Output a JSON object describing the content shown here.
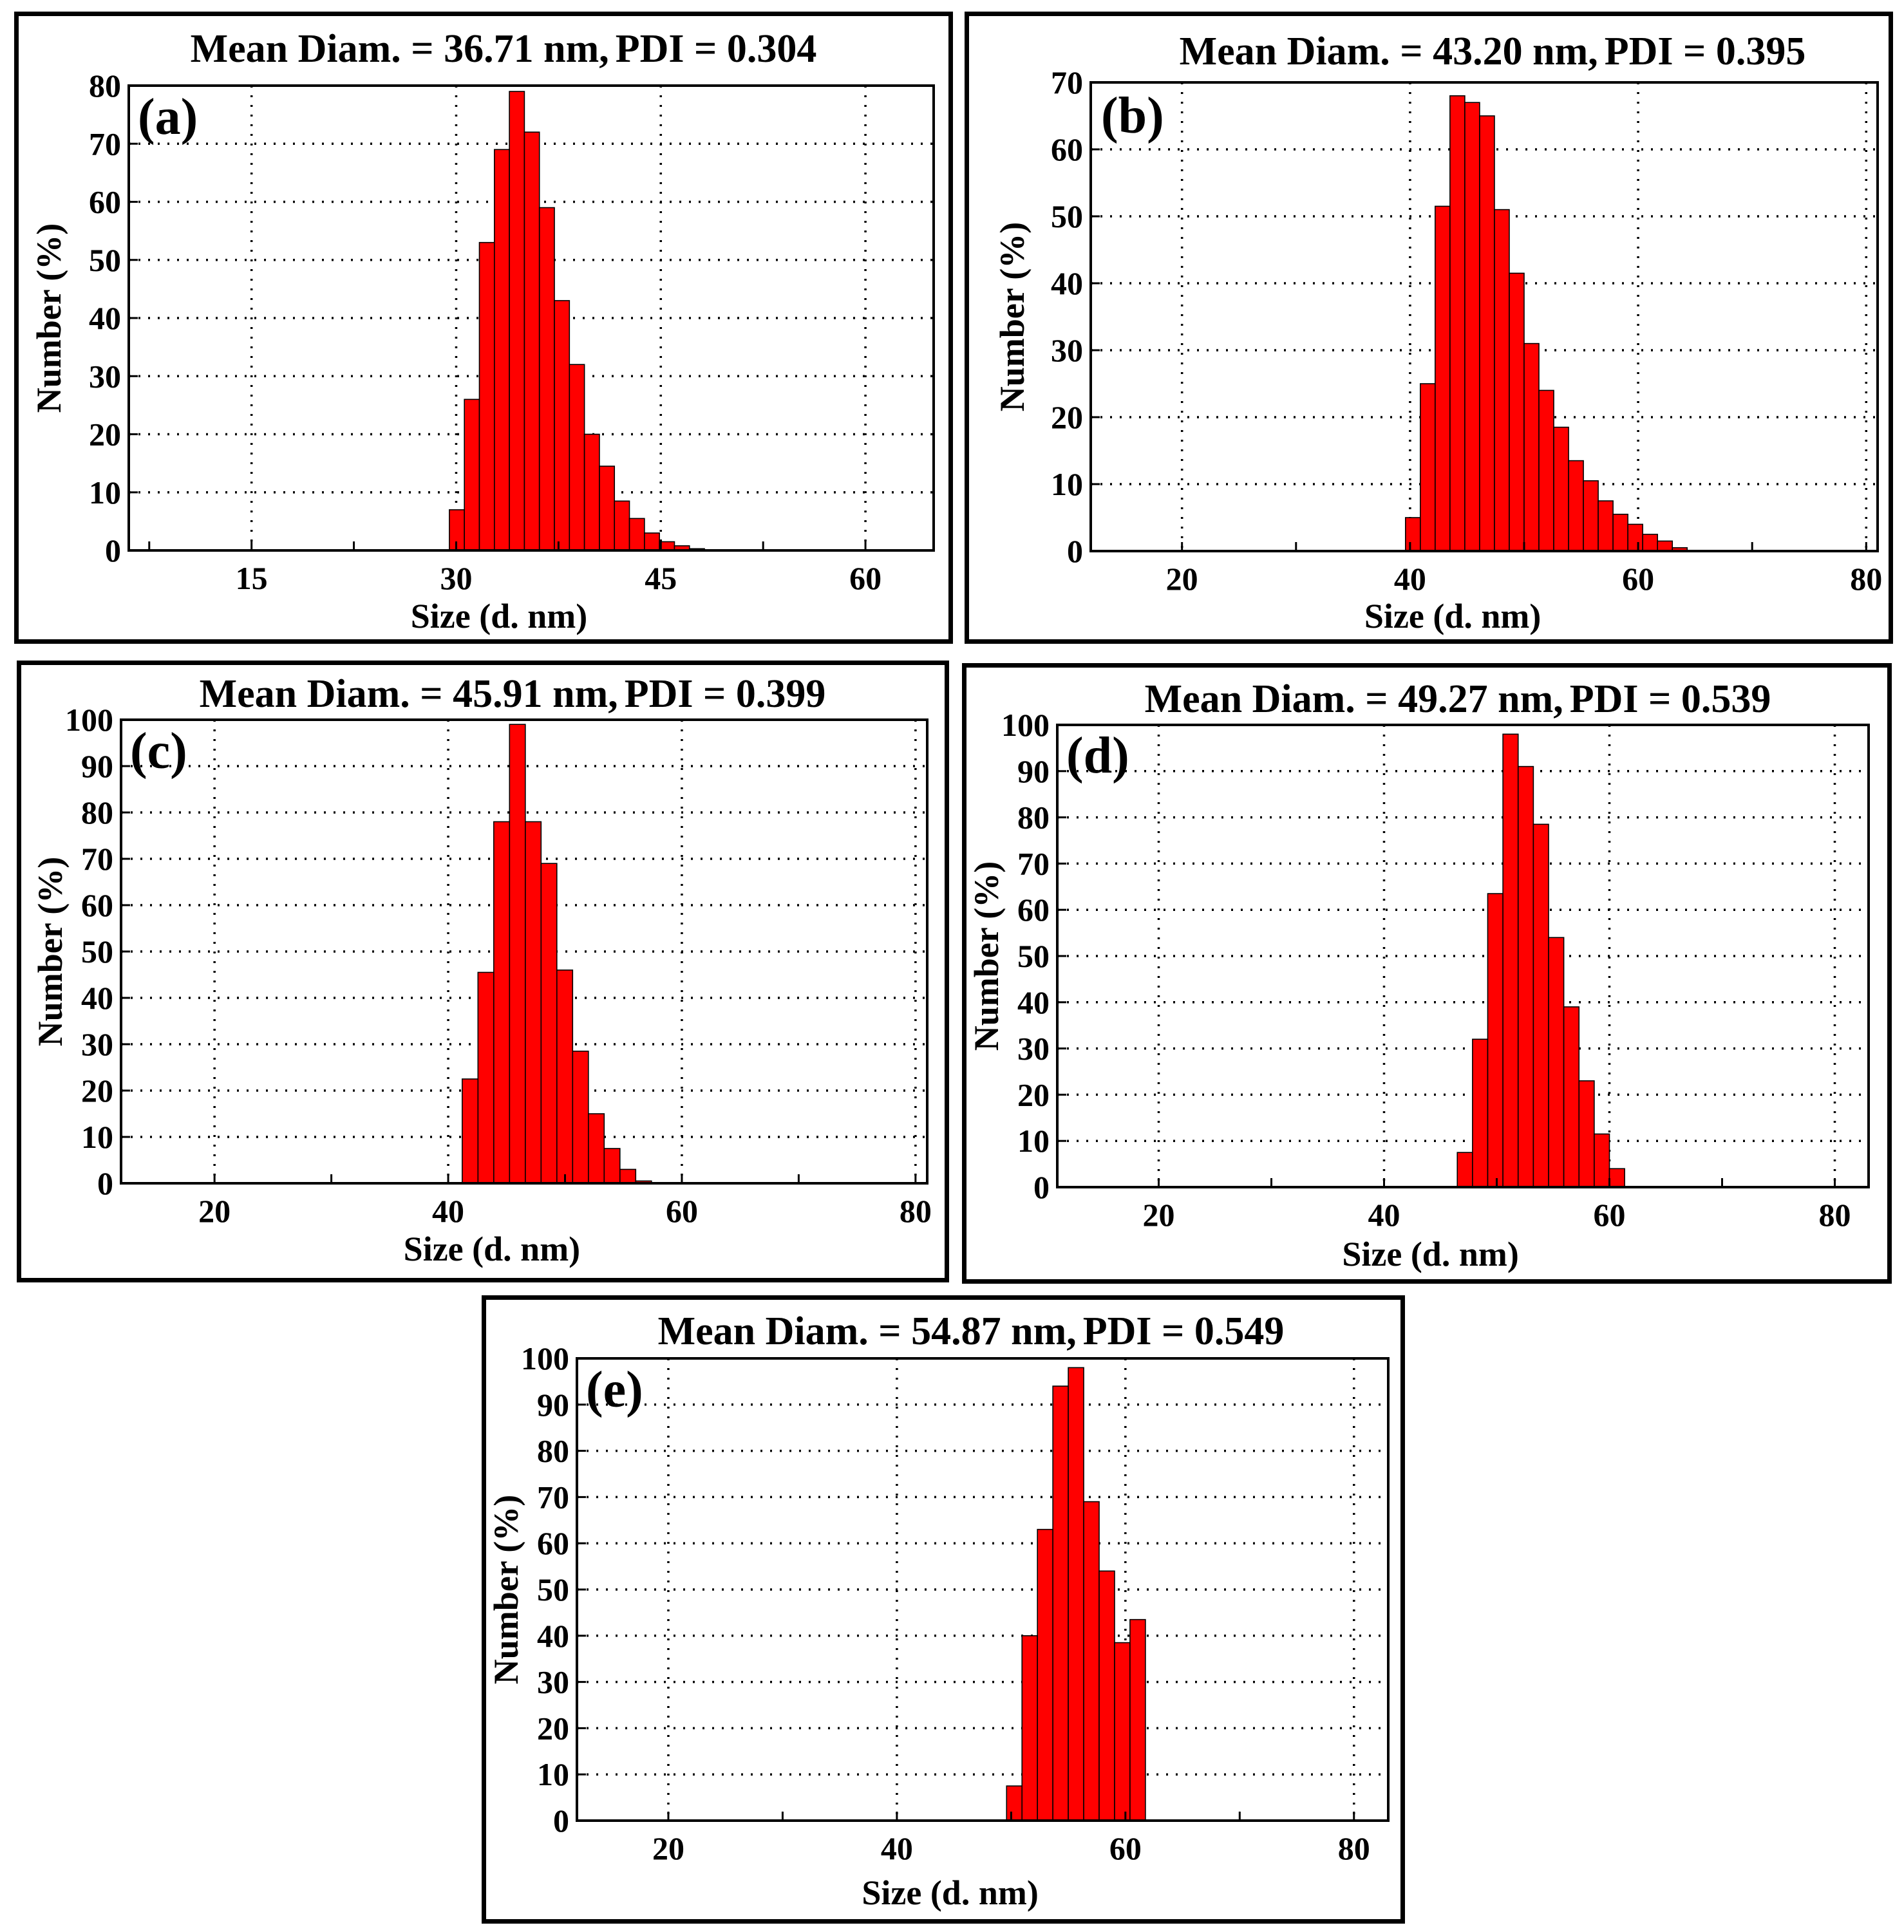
{
  "chart_data": [
    {
      "id": "a",
      "type": "bar",
      "panel_label": "(a)",
      "title_left": "Mean Diam. = 36.71  nm,",
      "title_right": "PDI = 0.304",
      "xlabel": "Size (d. nm)",
      "ylabel": "Number (%)",
      "xlim": [
        6,
        65
      ],
      "ylim": [
        0,
        80
      ],
      "xticks": [
        15,
        30,
        45,
        60
      ],
      "yticks": [
        0,
        10,
        20,
        30,
        40,
        50,
        60,
        70,
        80
      ],
      "bin_start": 29.5,
      "bin_width": 1.1,
      "values": [
        7,
        26,
        53,
        69,
        79,
        72,
        59,
        43,
        32,
        20,
        14.5,
        8.5,
        5.5,
        3,
        1.5,
        0.8,
        0.3
      ]
    },
    {
      "id": "b",
      "type": "bar",
      "panel_label": "(b)",
      "title_left": "Mean Diam. = 43.20 nm,",
      "title_right": "PDI = 0.395",
      "xlabel": "Size (d. nm)",
      "ylabel": "Number (%)",
      "xlim": [
        12,
        81
      ],
      "ylim": [
        0,
        70
      ],
      "xticks": [
        20,
        40,
        60,
        80
      ],
      "yticks": [
        0,
        10,
        20,
        30,
        40,
        50,
        60,
        70
      ],
      "bin_start": 39.6,
      "bin_width": 1.3,
      "values": [
        5,
        25,
        51.5,
        68,
        67,
        65,
        51,
        41.5,
        31,
        24,
        18.5,
        13.5,
        10.5,
        7.5,
        5.5,
        4,
        2.5,
        1.5,
        0.5
      ]
    },
    {
      "id": "c",
      "type": "bar",
      "panel_label": "(c)",
      "title_left": "Mean Diam. = 45.91 nm,",
      "title_right": "PDI = 0.399",
      "xlabel": "Size (d. nm)",
      "ylabel": "Number (%)",
      "xlim": [
        12,
        81
      ],
      "ylim": [
        0,
        100
      ],
      "xticks": [
        20,
        40,
        60,
        80
      ],
      "yticks": [
        0,
        10,
        20,
        30,
        40,
        50,
        60,
        70,
        80,
        90,
        100
      ],
      "bin_start": 41.2,
      "bin_width": 1.35,
      "values": [
        22.5,
        45.5,
        78,
        99,
        78,
        69,
        46,
        28.5,
        15,
        7.5,
        3,
        0.5
      ]
    },
    {
      "id": "d",
      "type": "bar",
      "panel_label": "(d)",
      "title_left": "Mean Diam. = 49.27 nm,",
      "title_right": "PDI = 0.539",
      "xlabel": "Size (d. nm)",
      "ylabel": "Number (%)",
      "xlim": [
        11,
        83
      ],
      "ylim": [
        0,
        100
      ],
      "xticks": [
        20,
        40,
        60,
        80
      ],
      "yticks": [
        0,
        10,
        20,
        30,
        40,
        50,
        60,
        70,
        80,
        90,
        100
      ],
      "bin_start": 46.5,
      "bin_width": 1.35,
      "values": [
        7.5,
        32,
        63.5,
        98,
        91,
        78.5,
        54,
        39,
        23,
        11.5,
        4
      ]
    },
    {
      "id": "e",
      "type": "bar",
      "panel_label": "(e)",
      "title_left": "Mean Diam. = 54.87 nm,",
      "title_right": "PDI = 0.549",
      "xlabel": "Size (d. nm)",
      "ylabel": "Number (%)",
      "xlim": [
        12,
        83
      ],
      "ylim": [
        0,
        100
      ],
      "xticks": [
        20,
        40,
        60,
        80
      ],
      "yticks": [
        0,
        10,
        20,
        30,
        40,
        50,
        60,
        70,
        80,
        90,
        100
      ],
      "bin_start": 49.6,
      "bin_width": 1.35,
      "values": [
        7.5,
        40,
        63,
        94,
        98,
        69,
        54,
        38.5,
        43.5
      ]
    }
  ]
}
